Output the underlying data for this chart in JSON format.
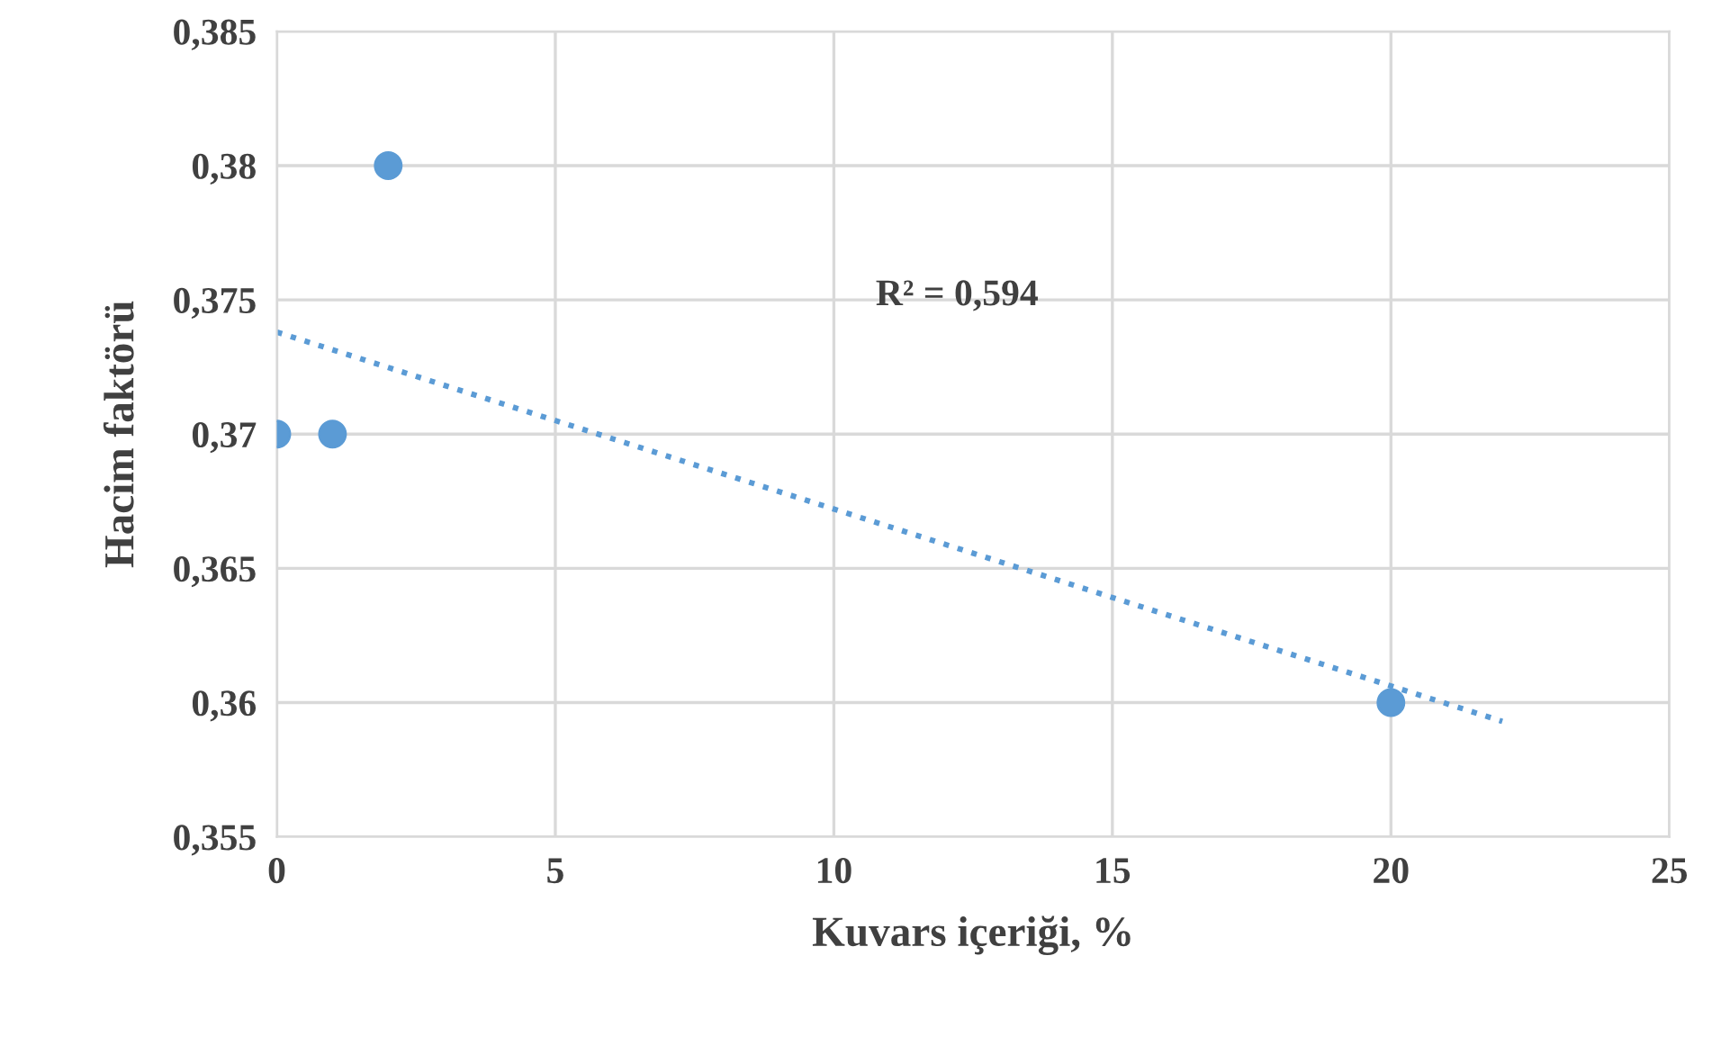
{
  "chart_data": {
    "type": "scatter",
    "xlabel": "Kuvars içeriği, %",
    "ylabel": "Hacim faktörü",
    "series": [
      {
        "color": "#5b9bd5",
        "x": [
          0,
          1,
          2,
          20
        ],
        "values": [
          0.37,
          0.37,
          0.38,
          0.36
        ],
        "marker": "circle"
      },
      {
        "type": "line",
        "color": "#5b9bd5",
        "x": [
          0,
          22
        ],
        "values": [
          0.3738,
          0.3593
        ],
        "line_style": "dotted",
        "marker": "none"
      }
    ],
    "annotations": [
      "R² = 0,594"
    ],
    "xlim": [
      0,
      25
    ],
    "xticks": [
      0,
      5,
      10,
      15,
      20,
      25
    ],
    "ylim": [
      0.355,
      0.385
    ],
    "yticks": [
      {
        "value": 0.355,
        "label": "0,355"
      },
      {
        "value": 0.36,
        "label": "0,36"
      },
      {
        "value": 0.365,
        "label": "0,365"
      },
      {
        "value": 0.37,
        "label": "0,37"
      },
      {
        "value": 0.375,
        "label": "0,375"
      },
      {
        "value": 0.38,
        "label": "0,38"
      },
      {
        "value": 0.385,
        "label": "0,385"
      }
    ],
    "grid": true,
    "legend": false
  }
}
